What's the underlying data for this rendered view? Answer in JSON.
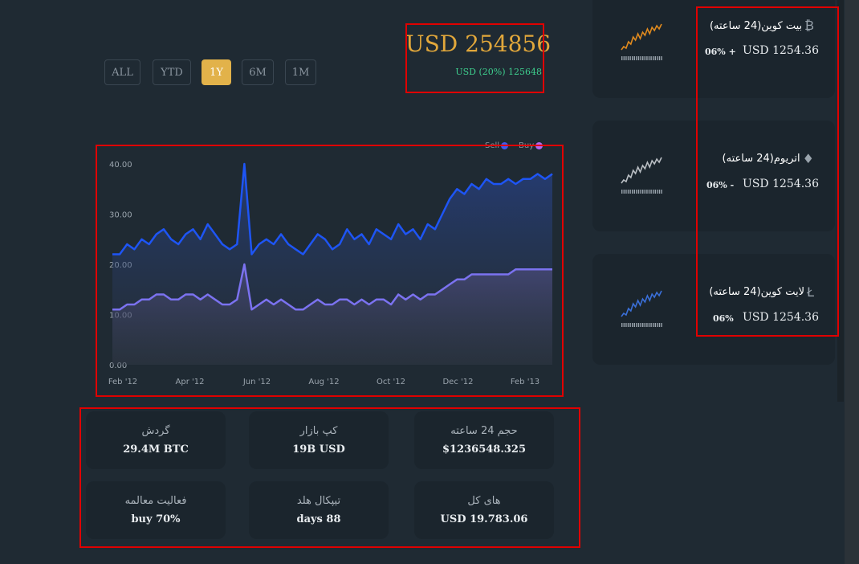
{
  "range_buttons": [
    {
      "label": "ALL",
      "active": false
    },
    {
      "label": "YTD",
      "active": false
    },
    {
      "label": "1Y",
      "active": true
    },
    {
      "label": "6M",
      "active": false
    },
    {
      "label": "1M",
      "active": false
    }
  ],
  "price": {
    "main": "USD 254856",
    "sub": "USD (20%) 125648"
  },
  "legend": {
    "sell": "Sell",
    "buy": "Buy",
    "sell_color": "#3f5bf0",
    "buy_color": "#b467f0"
  },
  "chart_data": {
    "type": "area",
    "x_ticks": [
      "Feb '12",
      "Apr '12",
      "Jun '12",
      "Aug '12",
      "Oct '12",
      "Dec '12",
      "Feb '13"
    ],
    "y_ticks": [
      "0.00",
      "10.00",
      "20.00",
      "30.00",
      "40.00"
    ],
    "ylim": [
      0,
      40
    ],
    "grid": false,
    "legend_position": "top-right",
    "series": [
      {
        "name": "Sell",
        "color": "#1e55f5",
        "values": [
          22,
          22,
          24,
          23,
          25,
          24,
          26,
          27,
          25,
          24,
          26,
          27,
          25,
          28,
          26,
          24,
          23,
          24,
          40,
          22,
          24,
          25,
          24,
          26,
          24,
          23,
          22,
          24,
          26,
          25,
          23,
          24,
          27,
          25,
          26,
          24,
          27,
          26,
          25,
          28,
          26,
          27,
          25,
          28,
          27,
          30,
          33,
          35,
          34,
          36,
          35,
          37,
          36,
          36,
          37,
          36,
          37,
          37,
          38,
          37,
          38
        ]
      },
      {
        "name": "Buy",
        "color": "#7b72f0",
        "values": [
          11,
          11,
          12,
          12,
          13,
          13,
          14,
          14,
          13,
          13,
          14,
          14,
          13,
          14,
          13,
          12,
          12,
          13,
          20,
          11,
          12,
          13,
          12,
          13,
          12,
          11,
          11,
          12,
          13,
          12,
          12,
          13,
          13,
          12,
          13,
          12,
          13,
          13,
          12,
          14,
          13,
          14,
          13,
          14,
          14,
          15,
          16,
          17,
          17,
          18,
          18,
          18,
          18,
          18,
          18,
          19,
          19,
          19,
          19,
          19,
          19
        ]
      }
    ]
  },
  "stats": [
    {
      "label": "گردش",
      "value": "29.4M  BTC"
    },
    {
      "label": "کپ بازار",
      "value": "19B  USD"
    },
    {
      "label": "حجم 24 ساعته",
      "value": "$1236548.325"
    },
    {
      "label": "فعالیت معالمه",
      "value": "buy  70%"
    },
    {
      "label": "تیپکال هلد",
      "value": "days  88"
    },
    {
      "label": "های کل",
      "value": "USD  19.783.06"
    }
  ],
  "coins": [
    {
      "name": "بیت کوین(24 ساعته)",
      "icon": "₿",
      "price": "USD  1254.36",
      "change": "06%  +",
      "spark_color": "#e08a1e"
    },
    {
      "name": "اتریوم(24 ساعته)",
      "icon": "♦",
      "price": "USD  1254.36",
      "change": "06%  -",
      "spark_color": "#b9bec3"
    },
    {
      "name": "لایت کوین(24 ساعته)",
      "icon": "Ł",
      "price": "USD  1254.36",
      "change": "06%",
      "spark_color": "#3a6fd8"
    }
  ]
}
